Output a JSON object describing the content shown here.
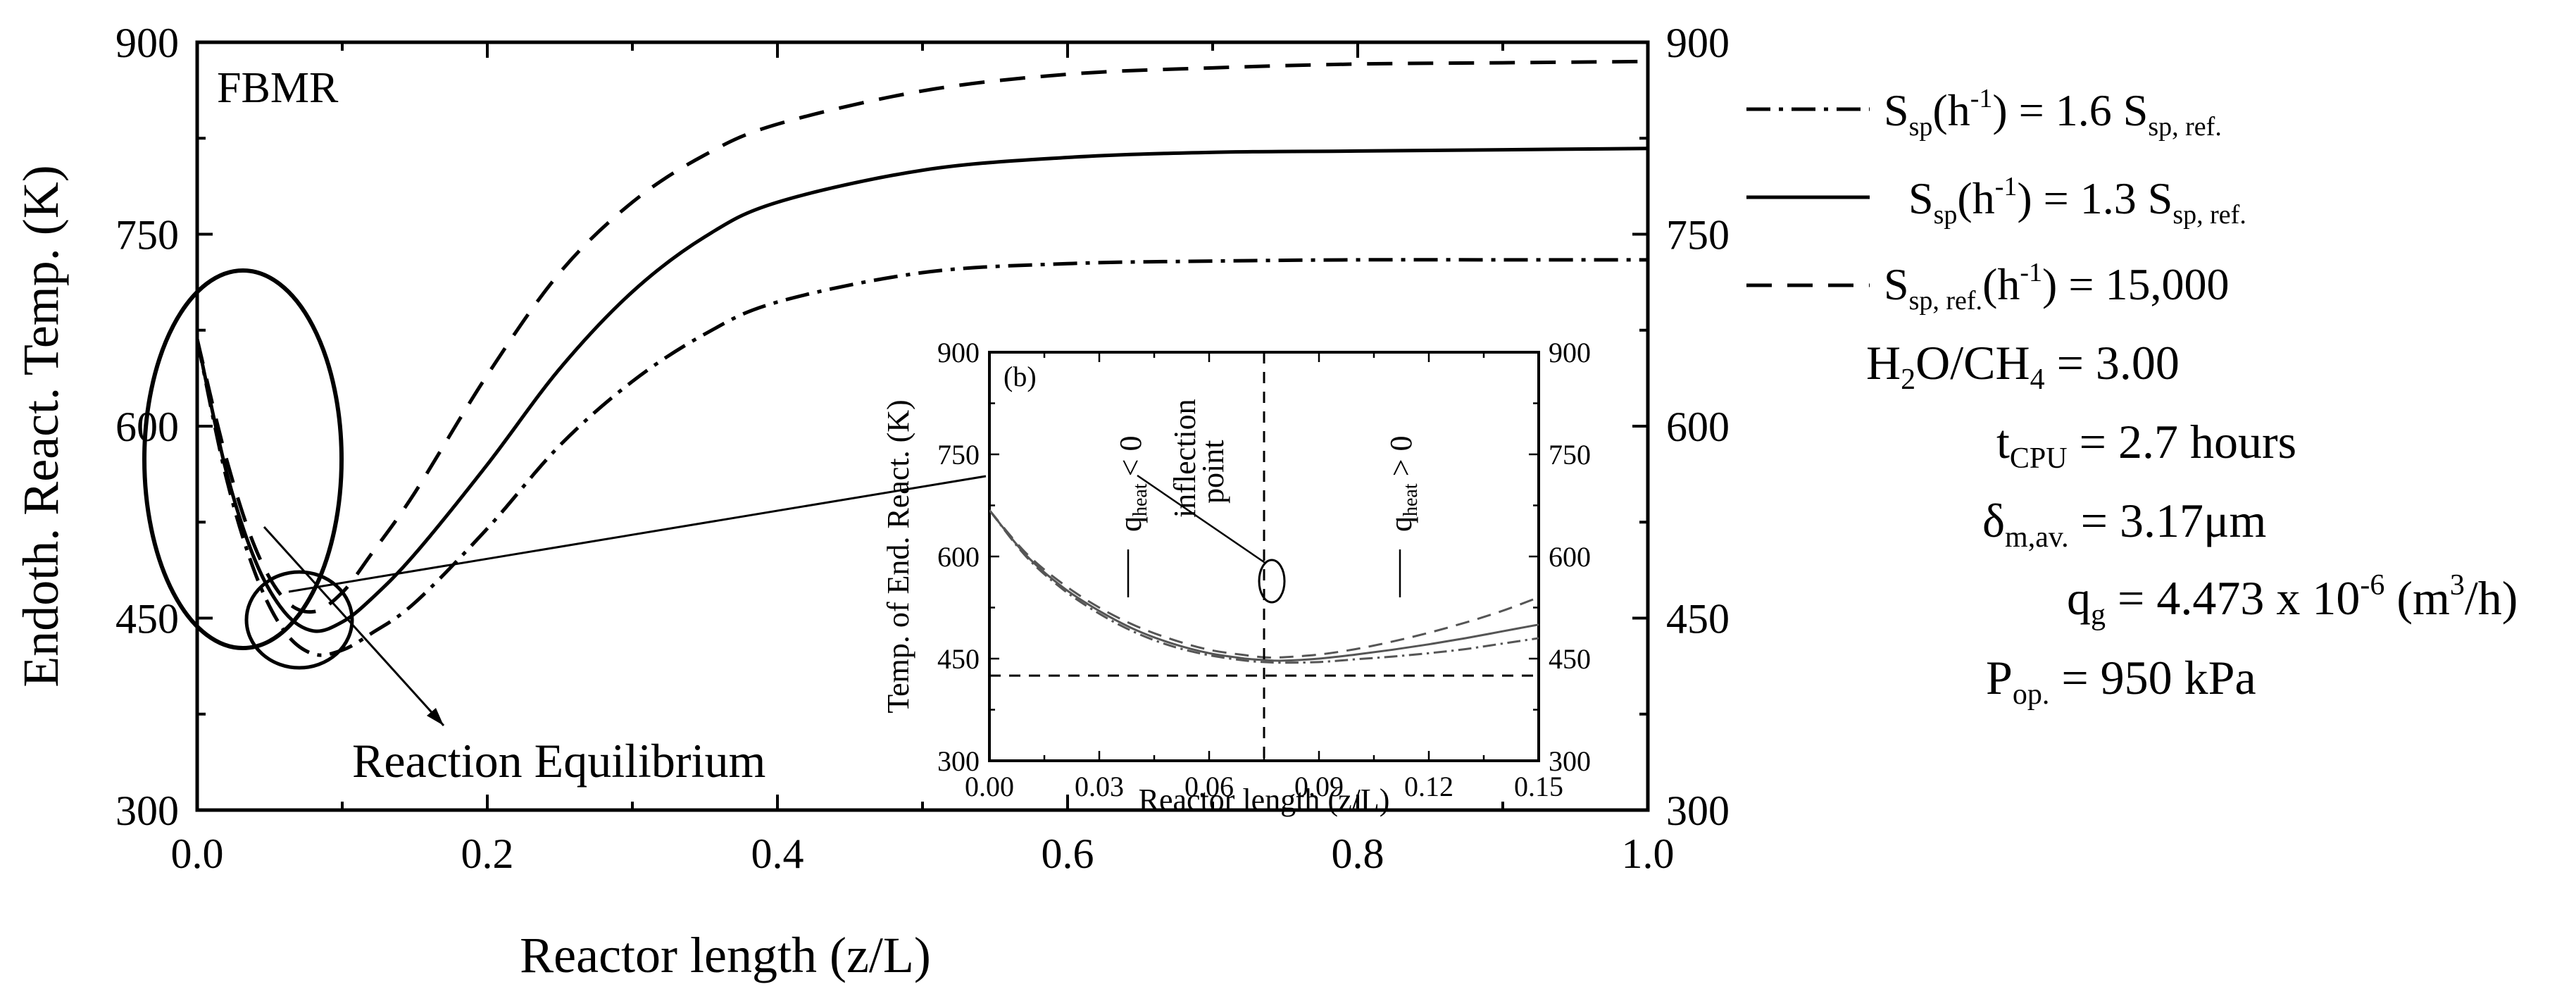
{
  "chart_data": [
    {
      "type": "line",
      "panel": "main",
      "panel_label": "FBMR",
      "xlabel": "Reactor length (z/L)",
      "ylabel": "Endoth. React. Temp. (K)",
      "xlim": [
        0.0,
        1.0
      ],
      "ylim": [
        300,
        900
      ],
      "xticks": [
        "0.0",
        "0.2",
        "0.4",
        "0.6",
        "0.8",
        "1.0"
      ],
      "yticks": [
        "300",
        "450",
        "600",
        "750",
        "900"
      ],
      "yticks_right": [
        "300",
        "450",
        "600",
        "750",
        "900"
      ],
      "series": [
        {
          "name": "1.6 S_sp,ref",
          "style": "dashdot",
          "x": [
            0.0,
            0.02,
            0.04,
            0.06,
            0.08,
            0.1,
            0.12,
            0.15,
            0.2,
            0.25,
            0.3,
            0.35,
            0.4,
            0.5,
            0.6,
            0.7,
            0.8,
            0.9,
            1.0
          ],
          "y": [
            668,
            560,
            485,
            440,
            422,
            425,
            438,
            462,
            520,
            585,
            635,
            672,
            697,
            720,
            727,
            729,
            730,
            730,
            730
          ]
        },
        {
          "name": "1.3 S_sp,ref",
          "style": "solid",
          "x": [
            0.0,
            0.02,
            0.04,
            0.06,
            0.08,
            0.1,
            0.12,
            0.15,
            0.2,
            0.25,
            0.3,
            0.35,
            0.4,
            0.5,
            0.6,
            0.7,
            0.8,
            0.9,
            1.0
          ],
          "y": [
            668,
            565,
            495,
            455,
            440,
            447,
            465,
            500,
            570,
            645,
            705,
            748,
            775,
            800,
            810,
            814,
            815,
            816,
            817
          ]
        },
        {
          "name": "S_sp,ref = 15,000 h-1",
          "style": "dashed",
          "x": [
            0.0,
            0.02,
            0.04,
            0.06,
            0.08,
            0.1,
            0.12,
            0.15,
            0.2,
            0.25,
            0.3,
            0.35,
            0.4,
            0.5,
            0.6,
            0.7,
            0.8,
            0.9,
            1.0
          ],
          "y": [
            668,
            575,
            505,
            465,
            455,
            470,
            500,
            548,
            640,
            720,
            775,
            812,
            836,
            862,
            875,
            880,
            883,
            884,
            885
          ]
        }
      ],
      "annotation": "Reaction Equilibrium"
    },
    {
      "type": "line",
      "panel": "inset",
      "panel_label": "(b)",
      "xlabel": "Reactor length (z/L)",
      "ylabel": "Temp. of End. React. (K)",
      "xlim": [
        0.0,
        0.15
      ],
      "ylim": [
        300,
        900
      ],
      "xticks": [
        "0.00",
        "0.03",
        "0.06",
        "0.09",
        "0.12",
        "0.15"
      ],
      "yticks": [
        "300",
        "450",
        "600",
        "750",
        "900"
      ],
      "yticks_right": [
        "300",
        "450",
        "600",
        "750",
        "900"
      ],
      "series": [
        {
          "name": "1.6 S_sp,ref",
          "style": "dashdot",
          "x": [
            0.0,
            0.01,
            0.02,
            0.03,
            0.04,
            0.05,
            0.06,
            0.07,
            0.075,
            0.08,
            0.09,
            0.1,
            0.11,
            0.12,
            0.13,
            0.14,
            0.15
          ],
          "y": [
            668,
            600,
            552,
            516,
            488,
            468,
            455,
            447,
            445,
            444,
            445,
            449,
            453,
            458,
            464,
            472,
            480
          ]
        },
        {
          "name": "1.3 S_sp,ref",
          "style": "solid",
          "x": [
            0.0,
            0.01,
            0.02,
            0.03,
            0.04,
            0.05,
            0.06,
            0.07,
            0.075,
            0.08,
            0.09,
            0.1,
            0.11,
            0.12,
            0.13,
            0.14,
            0.15
          ],
          "y": [
            668,
            602,
            555,
            520,
            492,
            472,
            458,
            450,
            448,
            447,
            450,
            456,
            463,
            471,
            480,
            490,
            500
          ]
        },
        {
          "name": "S_sp,ref = 15,000 h-1",
          "style": "dashed",
          "x": [
            0.0,
            0.01,
            0.02,
            0.03,
            0.04,
            0.05,
            0.06,
            0.07,
            0.075,
            0.08,
            0.09,
            0.1,
            0.11,
            0.12,
            0.13,
            0.14,
            0.15
          ],
          "y": [
            668,
            605,
            560,
            525,
            498,
            478,
            463,
            455,
            452,
            452,
            456,
            464,
            475,
            488,
            503,
            520,
            540
          ]
        }
      ],
      "reference_lines": {
        "horizontal_y": 425,
        "vertical_x": 0.075
      },
      "annotations": {
        "q_neg": "q",
        "q_neg_sub": "heat",
        "q_neg_rel": "< 0",
        "inflection_1": "inflection",
        "inflection_2": "point",
        "q_pos": "q",
        "q_pos_sub": "heat",
        "q_pos_rel": "> 0"
      }
    }
  ],
  "legend": [
    {
      "style": "dashdot",
      "main": "S",
      "sub": "sp",
      "mid": "(h",
      "sup": "-1",
      "rest": ") = 1.6 S",
      "sub2": "sp, ref."
    },
    {
      "style": "solid",
      "main": "S",
      "sub": "sp",
      "mid": "(h",
      "sup": "-1",
      "rest": ") = 1.3 S",
      "sub2": "sp, ref."
    },
    {
      "style": "dashed",
      "main": "S",
      "sub": "sp, ref.",
      "mid": "(h",
      "sup": "-1",
      "rest": ") = 15,000"
    }
  ],
  "conditions": {
    "ratio": {
      "a": "H",
      "a_sub": "2",
      "b": "O/CH",
      "b_sub": "4",
      "c": " = 3.00"
    },
    "tcpu": {
      "a": "t",
      "a_sub": "CPU",
      "c": " = 2.7 hours"
    },
    "delta": {
      "a": "δ",
      "a_sub": "m,av.",
      "c": " = 3.17μm"
    },
    "qg": {
      "a": "q",
      "a_sub": "g",
      "c": " = 4.473 x 10",
      "sup": "-6",
      "d": " (m",
      "sup2": "3",
      "e": "/h)"
    },
    "pop": {
      "a": "P",
      "a_sub": "op.",
      "c": " = 950 kPa"
    }
  }
}
